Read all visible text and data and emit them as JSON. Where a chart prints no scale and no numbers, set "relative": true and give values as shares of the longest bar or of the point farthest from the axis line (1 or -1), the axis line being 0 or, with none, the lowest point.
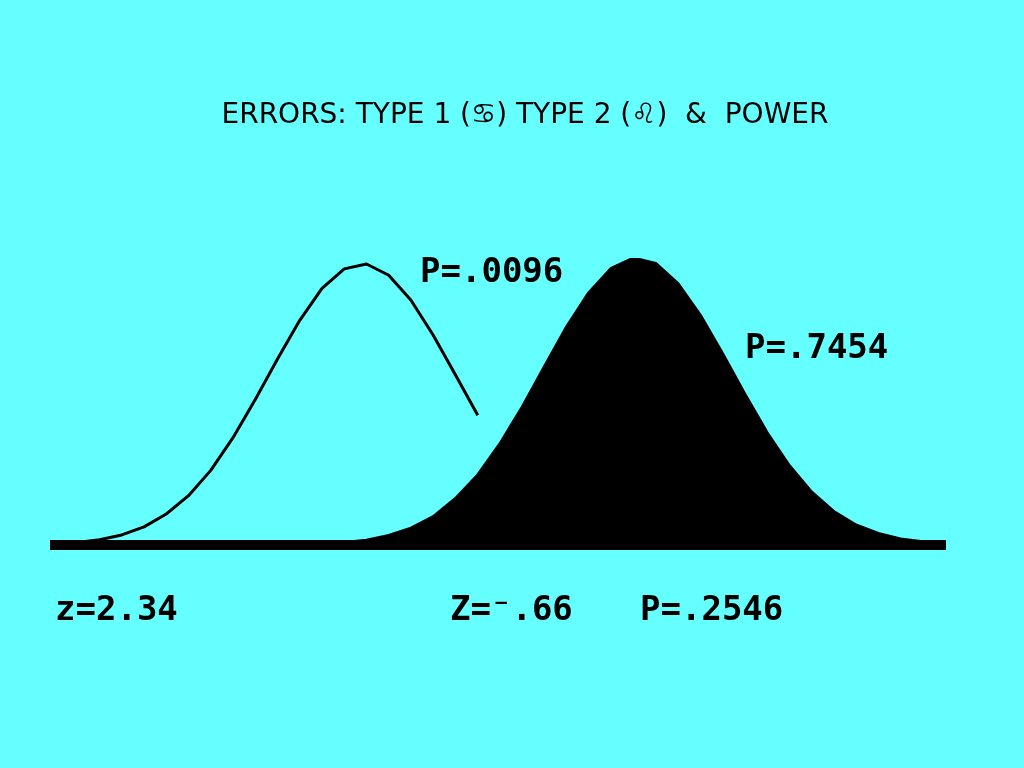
{
  "chart_data": {
    "type": "line",
    "title": "ERRORS: TYPE 1 (♋) TYPE 2 (♌)  &  POWER",
    "relative": true,
    "categories": [
      null,
      null,
      null,
      null,
      null,
      null,
      null,
      null,
      null,
      null,
      null,
      null,
      null,
      null,
      null,
      null,
      null,
      null,
      null,
      null,
      null,
      null,
      null,
      null,
      null,
      null,
      null,
      null,
      null,
      null,
      null,
      null,
      null,
      null,
      null,
      null,
      null,
      null,
      null,
      null,
      null
    ],
    "series": [
      {
        "color": "#000000",
        "values": [
          0.004,
          0.009,
          0.018,
          0.035,
          0.063,
          0.108,
          0.172,
          0.26,
          0.374,
          0.507,
          0.648,
          0.783,
          0.894,
          0.962,
          0.979,
          0.94,
          0.853,
          0.731,
          0.592,
          0.452,
          null,
          null,
          null,
          null,
          null,
          null,
          null,
          null,
          null,
          null,
          null,
          null,
          null,
          null,
          null,
          null,
          null,
          null,
          null,
          null,
          null
        ]
      },
      {
        "type": "area",
        "color": "#000000",
        "values": [
          null,
          null,
          null,
          null,
          null,
          null,
          null,
          null,
          null,
          null,
          0.001,
          0.002,
          0.004,
          0.009,
          0.017,
          0.033,
          0.059,
          0.099,
          0.162,
          0.244,
          0.353,
          0.481,
          0.622,
          0.761,
          0.88,
          0.964,
          1,
          0.981,
          0.911,
          0.801,
          0.667,
          0.526,
          0.392,
          0.277,
          0.185,
          0.117,
          0.07,
          0.04,
          0.021,
          0.011,
          0.005
        ]
      }
    ],
    "annotations": [
      "P=.0096",
      "P=.7454",
      "z=2.34",
      "Z=⁻.66",
      "P=.2546"
    ]
  }
}
